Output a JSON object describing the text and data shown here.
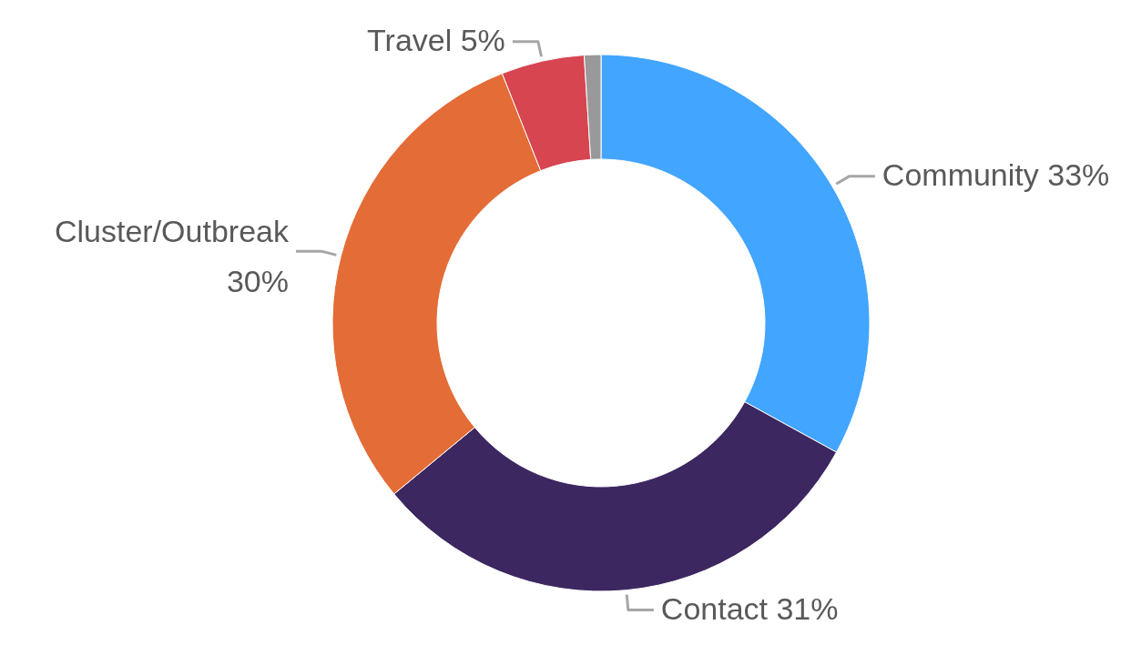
{
  "chart_data": {
    "type": "donut",
    "categories": [
      "Community",
      "Contact",
      "Cluster/Outbreak",
      "Travel",
      null
    ],
    "values": [
      33,
      31,
      30,
      5,
      1
    ],
    "value_labels": [
      "33%",
      "31%",
      "30%",
      "5%",
      null
    ],
    "colors": [
      "#42a5ff",
      "#3c2760",
      "#e46c36",
      "#d64550",
      "#999999"
    ]
  }
}
